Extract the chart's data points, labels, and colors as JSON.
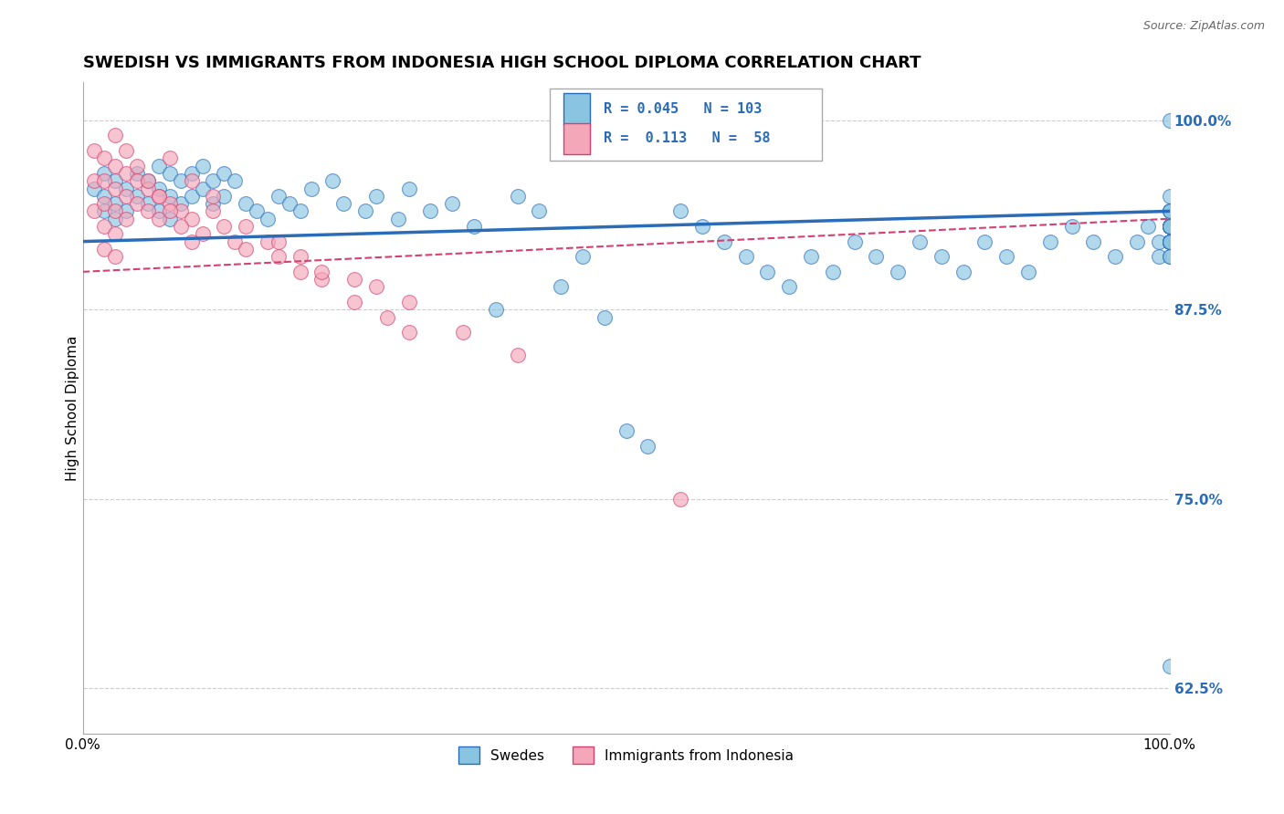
{
  "title": "SWEDISH VS IMMIGRANTS FROM INDONESIA HIGH SCHOOL DIPLOMA CORRELATION CHART",
  "source": "Source: ZipAtlas.com",
  "ylabel": "High School Diploma",
  "xlim": [
    0.0,
    1.0
  ],
  "ylim": [
    0.595,
    1.025
  ],
  "yticks": [
    0.625,
    0.75,
    0.875,
    1.0
  ],
  "ytick_labels": [
    "62.5%",
    "75.0%",
    "87.5%",
    "100.0%"
  ],
  "xticks": [
    0.0,
    1.0
  ],
  "xtick_labels": [
    "0.0%",
    "100.0%"
  ],
  "blue_R": 0.045,
  "blue_N": 103,
  "pink_R": 0.113,
  "pink_N": 58,
  "blue_color": "#89c4e1",
  "pink_color": "#f4a7b9",
  "blue_line_color": "#2b6cb8",
  "pink_line_color": "#d44070",
  "legend_blue_label": "Swedes",
  "legend_pink_label": "Immigrants from Indonesia",
  "blue_x": [
    0.01,
    0.02,
    0.02,
    0.02,
    0.03,
    0.03,
    0.03,
    0.04,
    0.04,
    0.05,
    0.05,
    0.06,
    0.06,
    0.07,
    0.07,
    0.07,
    0.08,
    0.08,
    0.08,
    0.09,
    0.09,
    0.1,
    0.1,
    0.11,
    0.11,
    0.12,
    0.12,
    0.13,
    0.13,
    0.14,
    0.15,
    0.16,
    0.17,
    0.18,
    0.19,
    0.2,
    0.21,
    0.23,
    0.24,
    0.26,
    0.27,
    0.29,
    0.3,
    0.32,
    0.34,
    0.36,
    0.38,
    0.4,
    0.42,
    0.44,
    0.46,
    0.48,
    0.5,
    0.52,
    0.55,
    0.57,
    0.59,
    0.61,
    0.63,
    0.65,
    0.67,
    0.69,
    0.71,
    0.73,
    0.75,
    0.77,
    0.79,
    0.81,
    0.83,
    0.85,
    0.87,
    0.89,
    0.91,
    0.93,
    0.95,
    0.97,
    0.98,
    0.99,
    0.99,
    1.0,
    1.0,
    1.0,
    1.0,
    1.0,
    1.0,
    1.0,
    1.0,
    1.0,
    1.0,
    1.0,
    1.0,
    1.0,
    1.0,
    1.0,
    1.0,
    1.0,
    1.0,
    1.0,
    1.0,
    1.0,
    1.0,
    1.0,
    1.0
  ],
  "blue_y": [
    0.955,
    0.965,
    0.95,
    0.94,
    0.96,
    0.945,
    0.935,
    0.955,
    0.94,
    0.965,
    0.95,
    0.96,
    0.945,
    0.97,
    0.955,
    0.94,
    0.965,
    0.95,
    0.935,
    0.96,
    0.945,
    0.965,
    0.95,
    0.97,
    0.955,
    0.96,
    0.945,
    0.965,
    0.95,
    0.96,
    0.945,
    0.94,
    0.935,
    0.95,
    0.945,
    0.94,
    0.955,
    0.96,
    0.945,
    0.94,
    0.95,
    0.935,
    0.955,
    0.94,
    0.945,
    0.93,
    0.875,
    0.95,
    0.94,
    0.89,
    0.91,
    0.87,
    0.795,
    0.785,
    0.94,
    0.93,
    0.92,
    0.91,
    0.9,
    0.89,
    0.91,
    0.9,
    0.92,
    0.91,
    0.9,
    0.92,
    0.91,
    0.9,
    0.92,
    0.91,
    0.9,
    0.92,
    0.93,
    0.92,
    0.91,
    0.92,
    0.93,
    0.91,
    0.92,
    0.93,
    0.92,
    0.91,
    0.93,
    0.92,
    0.94,
    0.93,
    0.92,
    0.91,
    0.93,
    0.92,
    0.94,
    0.93,
    0.92,
    0.93,
    0.95,
    0.93,
    0.92,
    0.94,
    0.93,
    0.92,
    0.64,
    0.93,
    1.0
  ],
  "pink_x": [
    0.01,
    0.01,
    0.01,
    0.02,
    0.02,
    0.02,
    0.02,
    0.02,
    0.03,
    0.03,
    0.03,
    0.03,
    0.03,
    0.04,
    0.04,
    0.04,
    0.05,
    0.05,
    0.06,
    0.06,
    0.07,
    0.07,
    0.08,
    0.09,
    0.1,
    0.11,
    0.12,
    0.13,
    0.14,
    0.15,
    0.17,
    0.18,
    0.2,
    0.22,
    0.25,
    0.28,
    0.3,
    0.08,
    0.1,
    0.12,
    0.15,
    0.18,
    0.2,
    0.25,
    0.3,
    0.22,
    0.27,
    0.35,
    0.4,
    0.03,
    0.04,
    0.05,
    0.06,
    0.07,
    0.08,
    0.09,
    0.1,
    0.55
  ],
  "pink_y": [
    0.98,
    0.96,
    0.94,
    0.975,
    0.96,
    0.945,
    0.93,
    0.915,
    0.97,
    0.955,
    0.94,
    0.925,
    0.91,
    0.965,
    0.95,
    0.935,
    0.96,
    0.945,
    0.955,
    0.94,
    0.95,
    0.935,
    0.945,
    0.94,
    0.935,
    0.925,
    0.94,
    0.93,
    0.92,
    0.915,
    0.92,
    0.91,
    0.9,
    0.895,
    0.88,
    0.87,
    0.86,
    0.975,
    0.96,
    0.95,
    0.93,
    0.92,
    0.91,
    0.895,
    0.88,
    0.9,
    0.89,
    0.86,
    0.845,
    0.99,
    0.98,
    0.97,
    0.96,
    0.95,
    0.94,
    0.93,
    0.92,
    0.75
  ],
  "background_color": "#ffffff",
  "grid_color": "#cccccc",
  "title_fontsize": 13,
  "label_fontsize": 11,
  "tick_fontsize": 11,
  "source_fontsize": 9
}
